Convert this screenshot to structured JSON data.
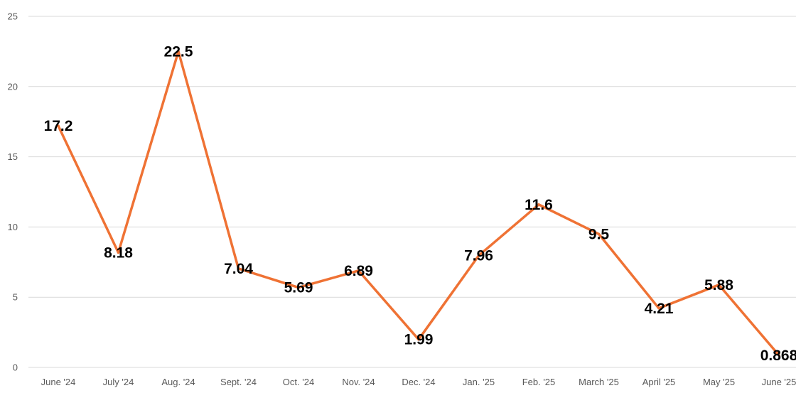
{
  "chart_data": {
    "type": "line",
    "categories": [
      "June '24",
      "July '24",
      "Aug. '24",
      "Sept. '24",
      "Oct. '24",
      "Nov. '24",
      "Dec. '24",
      "Jan. '25",
      "Feb. '25",
      "March '25",
      "April '25",
      "May '25",
      "June '25"
    ],
    "values": [
      17.2,
      8.18,
      22.5,
      7.04,
      5.69,
      6.89,
      1.99,
      7.96,
      11.6,
      9.5,
      4.21,
      5.88,
      0.868
    ],
    "data_labels": [
      "17.2",
      "8.18",
      "22.5",
      "7.04",
      "5.69",
      "6.89",
      "1.99",
      "7.96",
      "11.6",
      "9.5",
      "4.21",
      "5.88",
      "0.868"
    ],
    "yticks": [
      "0",
      "5",
      "10",
      "15",
      "20",
      "25"
    ],
    "ylim": [
      0,
      25
    ],
    "grid": true,
    "title": "",
    "xlabel": "",
    "ylabel": "",
    "colors": {
      "line": "#ef7234",
      "grid": "#d9d9d9",
      "axis": "#bfbfbf"
    }
  }
}
